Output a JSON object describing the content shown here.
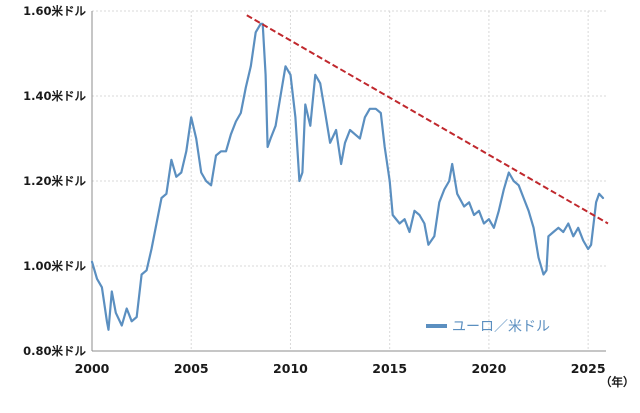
{
  "chart_data": {
    "type": "line",
    "title": "",
    "xlabel": "",
    "ylabel": "",
    "xlim": [
      2000,
      2025.9
    ],
    "ylim": [
      0.8,
      1.6
    ],
    "grid": true,
    "x_unit_label": "（年）",
    "x_ticks": [
      {
        "value": 2000,
        "label": "2000"
      },
      {
        "value": 2005,
        "label": "2005"
      },
      {
        "value": 2010,
        "label": "2010"
      },
      {
        "value": 2015,
        "label": "2015"
      },
      {
        "value": 2020,
        "label": "2020"
      },
      {
        "value": 2025,
        "label": "2025"
      }
    ],
    "y_ticks": [
      {
        "value": 0.8,
        "label": "0.80米ドル"
      },
      {
        "value": 1.0,
        "label": "1.00米ドル"
      },
      {
        "value": 1.2,
        "label": "1.20米ドル"
      },
      {
        "value": 1.4,
        "label": "1.40米ドル"
      },
      {
        "value": 1.6,
        "label": "1.60米ドル"
      }
    ],
    "legend": {
      "position": "bottom-right",
      "label": "ユーロ／米ドル"
    },
    "series": [
      {
        "name": "ユーロ／米ドル",
        "color": "#5b8fc0",
        "x": [
          2000.0,
          2000.25,
          2000.5,
          2000.75,
          2000.83,
          2001.0,
          2001.2,
          2001.5,
          2001.75,
          2002.0,
          2002.25,
          2002.5,
          2002.75,
          2003.0,
          2003.25,
          2003.5,
          2003.75,
          2004.0,
          2004.25,
          2004.5,
          2004.75,
          2005.0,
          2005.25,
          2005.5,
          2005.75,
          2006.0,
          2006.25,
          2006.5,
          2006.75,
          2007.0,
          2007.25,
          2007.5,
          2007.75,
          2008.0,
          2008.25,
          2008.5,
          2008.6,
          2008.75,
          2008.85,
          2009.0,
          2009.25,
          2009.5,
          2009.75,
          2010.0,
          2010.25,
          2010.45,
          2010.6,
          2010.75,
          2011.0,
          2011.25,
          2011.5,
          2011.75,
          2012.0,
          2012.3,
          2012.55,
          2012.75,
          2013.0,
          2013.25,
          2013.5,
          2013.75,
          2014.0,
          2014.3,
          2014.55,
          2014.75,
          2015.0,
          2015.15,
          2015.5,
          2015.75,
          2016.0,
          2016.25,
          2016.5,
          2016.75,
          2016.95,
          2017.25,
          2017.5,
          2017.75,
          2018.0,
          2018.15,
          2018.4,
          2018.75,
          2019.0,
          2019.25,
          2019.5,
          2019.75,
          2020.0,
          2020.25,
          2020.5,
          2020.75,
          2021.0,
          2021.25,
          2021.5,
          2021.75,
          2022.0,
          2022.25,
          2022.5,
          2022.75,
          2022.9,
          2023.0,
          2023.25,
          2023.5,
          2023.75,
          2024.0,
          2024.25,
          2024.5,
          2024.75,
          2025.0,
          2025.15,
          2025.4,
          2025.55,
          2025.75
        ],
        "values": [
          1.01,
          0.97,
          0.95,
          0.87,
          0.85,
          0.94,
          0.89,
          0.86,
          0.9,
          0.87,
          0.88,
          0.98,
          0.99,
          1.04,
          1.1,
          1.16,
          1.17,
          1.25,
          1.21,
          1.22,
          1.27,
          1.35,
          1.3,
          1.22,
          1.2,
          1.19,
          1.26,
          1.27,
          1.27,
          1.31,
          1.34,
          1.36,
          1.42,
          1.47,
          1.55,
          1.57,
          1.57,
          1.45,
          1.28,
          1.3,
          1.33,
          1.4,
          1.47,
          1.45,
          1.35,
          1.2,
          1.22,
          1.38,
          1.33,
          1.45,
          1.43,
          1.36,
          1.29,
          1.32,
          1.24,
          1.29,
          1.32,
          1.31,
          1.3,
          1.35,
          1.37,
          1.37,
          1.36,
          1.28,
          1.2,
          1.12,
          1.1,
          1.11,
          1.08,
          1.13,
          1.12,
          1.1,
          1.05,
          1.07,
          1.15,
          1.18,
          1.2,
          1.24,
          1.17,
          1.14,
          1.15,
          1.12,
          1.13,
          1.1,
          1.11,
          1.09,
          1.13,
          1.18,
          1.22,
          1.2,
          1.19,
          1.16,
          1.13,
          1.09,
          1.02,
          0.98,
          0.99,
          1.07,
          1.08,
          1.09,
          1.08,
          1.1,
          1.07,
          1.09,
          1.06,
          1.04,
          1.05,
          1.15,
          1.17,
          1.16
        ]
      }
    ],
    "trendline": {
      "name": "trend",
      "color": "#c0282d",
      "style": "dashed",
      "x": [
        2007.8,
        2026.0
      ],
      "values": [
        1.59,
        1.1
      ]
    }
  }
}
